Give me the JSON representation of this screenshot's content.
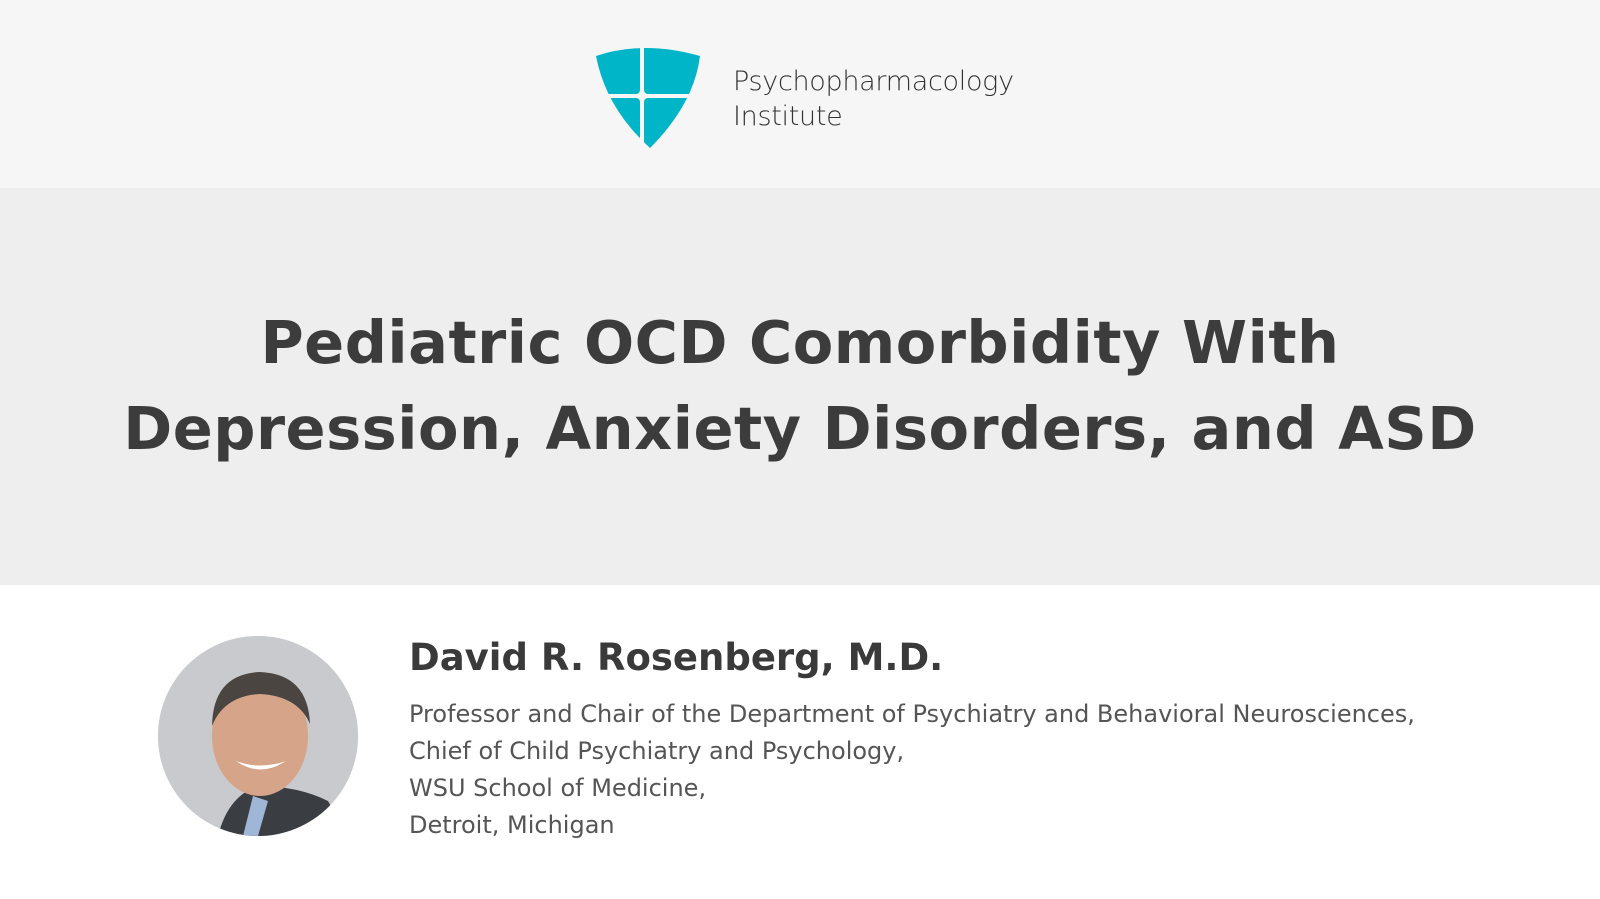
{
  "header": {
    "brand_line1": "Psychopharmacology",
    "brand_line2": "Institute",
    "logo_icon": "shield-cross-icon",
    "brand_color": "#00b5c8"
  },
  "title": {
    "line1": "Pediatric OCD Comorbidity With",
    "line2": "Depression, Anxiety Disorders, and ASD"
  },
  "speaker": {
    "name": "David R. Rosenberg, M.D.",
    "affiliation": [
      "Professor and Chair of the Department of Psychiatry and Behavioral Neurosciences,",
      "Chief of Child Psychiatry and Psychology,",
      "WSU School of Medicine,",
      "Detroit, Michigan"
    ]
  }
}
